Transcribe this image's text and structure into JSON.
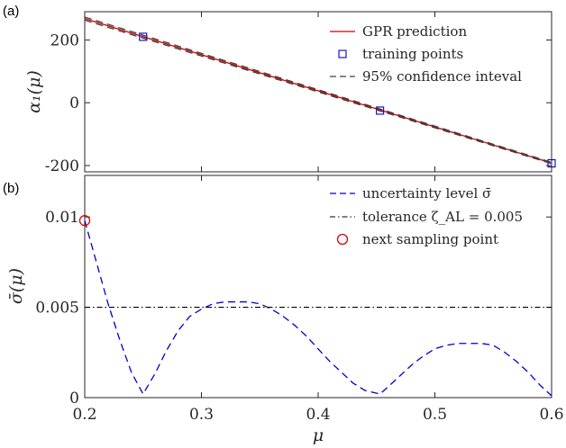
{
  "chart_data": [
    {
      "panel_label": "(a)",
      "type": "line",
      "ylabel": "α₁(μ)",
      "xlim": [
        0.2,
        0.6
      ],
      "ylim": [
        -220,
        290
      ],
      "yticks": [
        200,
        0,
        -200
      ],
      "ytick_labels": [
        "200",
        "0",
        "-200"
      ],
      "grid": false,
      "legend_position": "top-right",
      "series": [
        {
          "name": "GPR prediction",
          "style": "line",
          "color": "#cc0000",
          "x": [
            0.2,
            0.6
          ],
          "y": [
            268,
            -192
          ]
        },
        {
          "name": "training points",
          "style": "square-marker",
          "color": "#0000cc",
          "x": [
            0.25,
            0.453,
            0.6
          ],
          "y": [
            210,
            -25,
            -193
          ]
        },
        {
          "name": "95% confidence inteval",
          "style": "dashed",
          "color": "#404040",
          "upper": {
            "x": [
              0.2,
              0.6
            ],
            "y": [
              273,
              -190
            ]
          },
          "lower": {
            "x": [
              0.2,
              0.6
            ],
            "y": [
              263,
              -194
            ]
          }
        }
      ]
    },
    {
      "panel_label": "(b)",
      "type": "line",
      "xlabel": "μ",
      "ylabel": "σ̄(μ)",
      "xlim": [
        0.2,
        0.6
      ],
      "ylim": [
        0,
        0.0123
      ],
      "xticks": [
        0.2,
        0.3,
        0.4,
        0.5,
        0.6
      ],
      "xtick_labels": [
        "0.2",
        "0.3",
        "0.4",
        "0.5",
        "0.6"
      ],
      "yticks": [
        0,
        0.005,
        0.01
      ],
      "ytick_labels": [
        "0",
        "0.005",
        "0.01"
      ],
      "grid": false,
      "legend_position": "top-right",
      "series": [
        {
          "name": "uncertainty level σ̄",
          "style": "dashed",
          "color": "#0000cc",
          "x": [
            0.2,
            0.21,
            0.22,
            0.23,
            0.24,
            0.25,
            0.26,
            0.27,
            0.28,
            0.29,
            0.3,
            0.31,
            0.32,
            0.33,
            0.34,
            0.35,
            0.36,
            0.37,
            0.38,
            0.39,
            0.4,
            0.41,
            0.42,
            0.43,
            0.44,
            0.453,
            0.46,
            0.47,
            0.48,
            0.49,
            0.5,
            0.51,
            0.52,
            0.53,
            0.54,
            0.55,
            0.56,
            0.57,
            0.58,
            0.59,
            0.6
          ],
          "y": [
            0.0098,
            0.0075,
            0.0052,
            0.0032,
            0.0014,
            0.0002,
            0.0013,
            0.0026,
            0.0037,
            0.0045,
            0.0049,
            0.0052,
            0.0053,
            0.0053,
            0.0053,
            0.0052,
            0.0049,
            0.0045,
            0.004,
            0.0034,
            0.0027,
            0.002,
            0.0014,
            0.0008,
            0.0004,
            0.0002,
            0.0006,
            0.0012,
            0.0018,
            0.0023,
            0.0027,
            0.0029,
            0.003,
            0.003,
            0.003,
            0.0029,
            0.0025,
            0.002,
            0.0014,
            0.0007,
            0.0001
          ]
        },
        {
          "name": "tolerance ζ_AL = 0.005",
          "style": "dashdot",
          "color": "#000000",
          "x": [
            0.2,
            0.6
          ],
          "y": [
            0.005,
            0.005
          ]
        },
        {
          "name": "next sampling point",
          "style": "circle-marker",
          "color": "#e00000",
          "x": [
            0.2
          ],
          "y": [
            0.0098
          ]
        }
      ]
    }
  ]
}
